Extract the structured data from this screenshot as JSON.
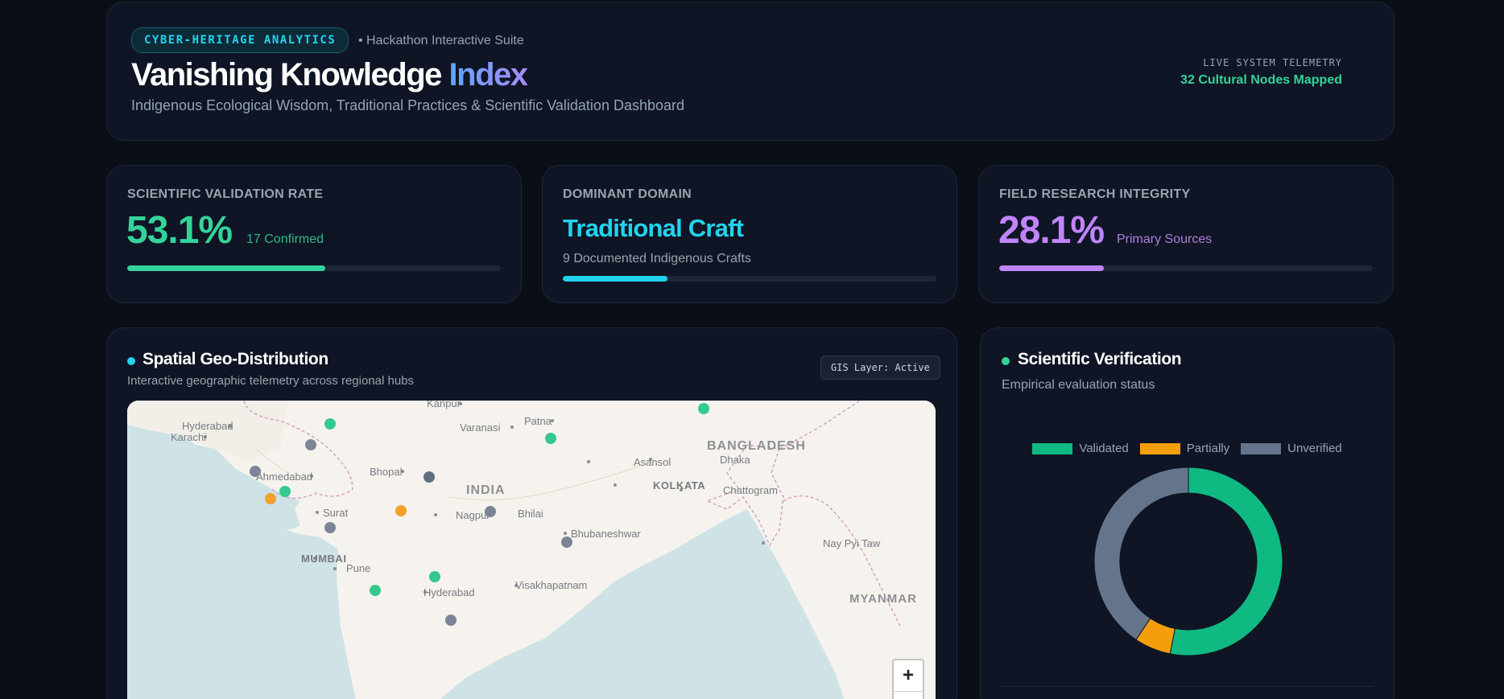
{
  "header": {
    "tag": "CYBER-HERITAGE ANALYTICS",
    "suite": "Hackathon Interactive Suite",
    "title_main": "Vanishing Knowledge",
    "title_accent": "Index",
    "subtitle": "Indigenous Ecological Wisdom, Traditional Practices & Scientific Validation Dashboard",
    "telemetry_label": "LIVE SYSTEM TELEMETRY",
    "telemetry_value": "32 Cultural Nodes Mapped"
  },
  "stats": {
    "validation": {
      "label": "SCIENTIFIC VALIDATION RATE",
      "value": "53.1%",
      "sub": "17 Confirmed",
      "progress": 0.531,
      "color": "#34d399"
    },
    "domain": {
      "label": "DOMINANT DOMAIN",
      "value": "Traditional Craft",
      "sub": "9 Documented Indigenous Crafts",
      "progress": 0.281,
      "color": "#22d3ee"
    },
    "integrity": {
      "label": "FIELD RESEARCH INTEGRITY",
      "value": "28.1%",
      "sub": "Primary Sources",
      "progress": 0.281,
      "color": "#c084fc"
    }
  },
  "map_panel": {
    "title": "Spatial Geo-Distribution",
    "subtitle": "Interactive geographic telemetry across regional hubs",
    "badge": "GIS Layer: Active",
    "zoom_in": "+",
    "zoom_out": "−",
    "labels": {
      "kanpur": "Kanpur",
      "hyderabad_pk": "Hyderabad",
      "karachi": "Karachi",
      "patna": "Patna",
      "varanasi": "Varanasi",
      "bangladesh": "BANGLADESH",
      "dhaka": "Dhaka",
      "asansol": "Asansol",
      "ahmedabad": "Ahmedabad",
      "bhopal": "Bhopal",
      "india": "INDIA",
      "kolkata": "KOLKATA",
      "chattogram": "Chattogram",
      "bhilai": "Bhilai",
      "surat": "Surat",
      "nagpur": "Nagpur",
      "bhubaneshwar": "Bhubaneshwar",
      "mumbai": "MUMBAI",
      "pune": "Pune",
      "nay_pyi_taw": "Nay Pyi Taw",
      "visakhapatnam": "Visakhapatnam",
      "hyderabad_in": "Hyderabad",
      "myanmar": "MYANMAR"
    },
    "status_colors": {
      "validated": "#34c98f",
      "partial": "#f2a12a",
      "unverified": "#7b8597",
      "highlight": "#5f7080"
    },
    "markers": [
      {
        "status": "validated"
      },
      {
        "status": "validated"
      },
      {
        "status": "validated"
      },
      {
        "status": "validated"
      },
      {
        "status": "validated"
      },
      {
        "status": "validated"
      },
      {
        "status": "partial"
      },
      {
        "status": "partial"
      },
      {
        "status": "unverified"
      },
      {
        "status": "unverified"
      },
      {
        "status": "unverified"
      },
      {
        "status": "unverified"
      },
      {
        "status": "unverified"
      },
      {
        "status": "unverified"
      },
      {
        "status": "highlight"
      }
    ]
  },
  "verify_panel": {
    "title": "Scientific Verification",
    "subtitle": "Empirical evaluation status"
  },
  "chart_data": {
    "type": "pie",
    "title": "",
    "categories": [
      "Validated",
      "Partially",
      "Unverified"
    ],
    "values": [
      17,
      2,
      13
    ],
    "colors": [
      "#10b981",
      "#f59e0b",
      "#64748b"
    ],
    "donut": true,
    "legend": "top"
  }
}
